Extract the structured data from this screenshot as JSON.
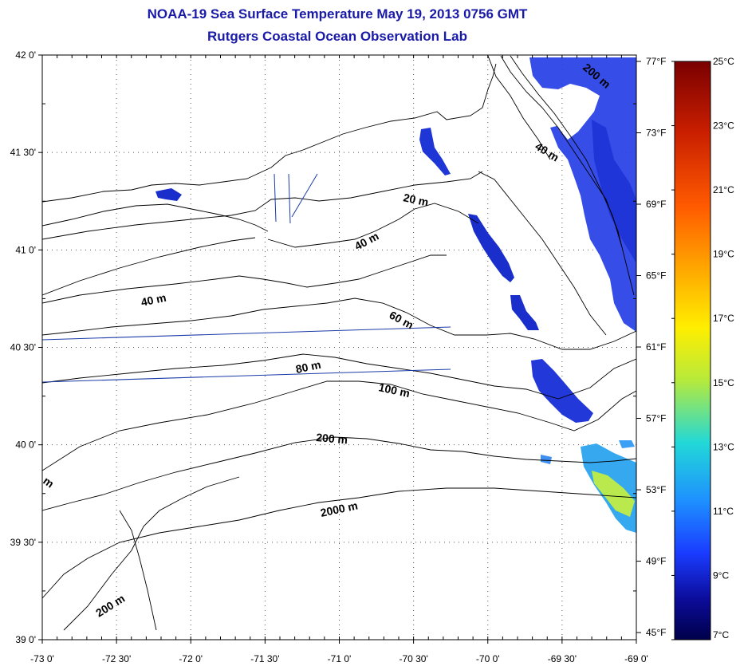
{
  "title": {
    "line1": "NOAA-19 Sea Surface Temperature May 19, 2013 0756 GMT",
    "line2": "Rutgers Coastal Ocean Observation Lab"
  },
  "map": {
    "lat_labels": [
      {
        "lat": 42.0,
        "label": "42 0'"
      },
      {
        "lat": 41.5,
        "label": "41 30'"
      },
      {
        "lat": 41.0,
        "label": "41 0'"
      },
      {
        "lat": 40.5,
        "label": "40 30'"
      },
      {
        "lat": 40.0,
        "label": "40 0'"
      },
      {
        "lat": 39.5,
        "label": "39 30'"
      },
      {
        "lat": 39.0,
        "label": "39 0'"
      }
    ],
    "lon_labels": [
      {
        "lon": -73.0,
        "label": "-73 0'"
      },
      {
        "lon": -72.5,
        "label": "-72 30'"
      },
      {
        "lon": -72.0,
        "label": "-72 0'"
      },
      {
        "lon": -71.5,
        "label": "-71 30'"
      },
      {
        "lon": -71.0,
        "label": "-71 0'"
      },
      {
        "lon": -70.5,
        "label": "-70 30'"
      },
      {
        "lon": -70.0,
        "label": "-70 0'"
      },
      {
        "lon": -69.5,
        "label": "-69 30'"
      },
      {
        "lon": -69.0,
        "label": "-69 0'"
      }
    ],
    "depth_labels": [
      "20 m",
      "40 m",
      "40 m",
      "40 m",
      "60 m",
      "80 m",
      "100 m",
      "200 m",
      "200 m",
      "200 m",
      "2000 m",
      "m"
    ]
  },
  "colorbar": {
    "celsius": [
      "25°C",
      "23°C",
      "21°C",
      "19°C",
      "17°C",
      "15°C",
      "13°C",
      "11°C",
      "9°C",
      "7°C"
    ],
    "fahrenheit": [
      "77°F",
      "73°F",
      "69°F",
      "65°F",
      "61°F",
      "57°F",
      "53°F",
      "49°F",
      "45°F"
    ],
    "colors": [
      "#7a0000",
      "#c81e00",
      "#ff5a00",
      "#ffa800",
      "#ffee00",
      "#b8ea3a",
      "#22d8d8",
      "#1e90ff",
      "#1a3cff",
      "#0c0c9a",
      "#00004a"
    ]
  }
}
